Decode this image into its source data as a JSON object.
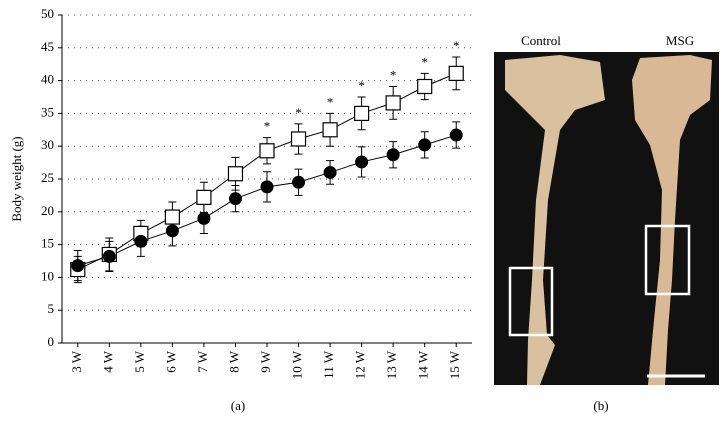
{
  "chart_data": {
    "type": "line",
    "ylabel": "Body weight (g)",
    "categories": [
      "3 W",
      "4 W",
      "5 W",
      "6 W",
      "7 W",
      "8 W",
      "9 W",
      "10 W",
      "11 W",
      "12 W",
      "13 W",
      "14 W",
      "15 W"
    ],
    "series": [
      {
        "color": "#000000",
        "marker": "square",
        "values": [
          11.2,
          13.5,
          16.7,
          19.2,
          22.2,
          25.8,
          29.3,
          31.1,
          32.5,
          35.0,
          36.6,
          39.1,
          41.1
        ],
        "errors": [
          2.0,
          2.5,
          2.0,
          2.3,
          2.3,
          2.5,
          2.0,
          2.3,
          2.5,
          2.5,
          2.5,
          2.0,
          2.5
        ]
      },
      {
        "color": "#000000",
        "marker": "circle",
        "values": [
          11.8,
          13.2,
          15.5,
          17.1,
          19.0,
          22.0,
          23.8,
          24.5,
          26.0,
          27.6,
          28.7,
          30.2,
          31.7
        ],
        "errors": [
          2.3,
          2.3,
          2.3,
          2.3,
          2.3,
          2.0,
          2.3,
          2.0,
          1.8,
          2.3,
          2.0,
          2.0,
          2.0
        ]
      }
    ],
    "annotations": [
      null,
      null,
      null,
      null,
      null,
      null,
      "*",
      "*",
      "*",
      "*",
      "*",
      "*",
      "*"
    ],
    "ylim": [
      0,
      50
    ],
    "yticks": [
      0,
      5,
      10,
      15,
      20,
      25,
      30,
      35,
      40,
      45,
      50
    ],
    "grid": true
  },
  "panel_labels": [
    "(a)",
    "(b)"
  ],
  "photo": {
    "labels": [
      "Control",
      "MSG"
    ]
  }
}
